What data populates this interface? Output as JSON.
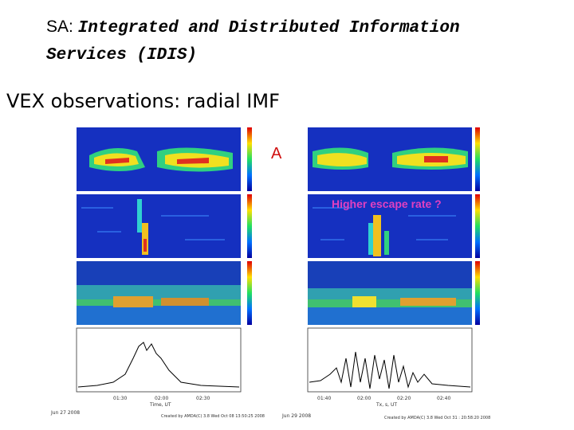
{
  "slide": {
    "title_prefix": "SA: ",
    "title_main": "Integrated and Distributed Information Services (IDIS)",
    "subtitle": "VEX observations: radial IMF"
  },
  "annotations": {
    "label_a": "A",
    "higher_escape": "Higher escape rate ?"
  },
  "figure_captions": {
    "left_date": "Jun 27 2008",
    "right_date": "Jun 29 2008",
    "left_time_label": "Time, UT",
    "right_time_label": "Tx, s, UT",
    "left_credit": "Created by AMDA(C) 3.8 Wed Oct 08 13:50:25 2008",
    "right_credit": "Created by AMDA(C) 3.8 Wed Oct 31 : 20:58:20 2008",
    "left_ticks": [
      "01:30",
      "02:00",
      "02:30"
    ],
    "right_ticks": [
      "01:40",
      "02:00",
      "02:20",
      "02:40"
    ]
  },
  "colors": {
    "spectrogram_bg": "#1530c0",
    "accent_red": "#d01010",
    "accent_pink": "#e040c0"
  }
}
